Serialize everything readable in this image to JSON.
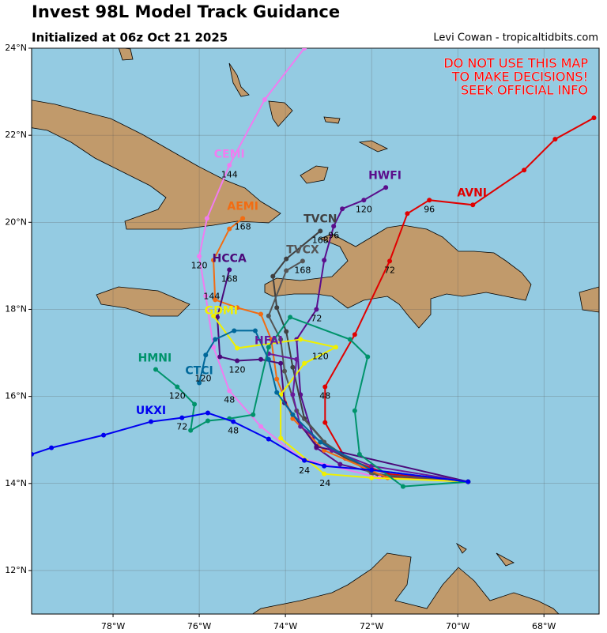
{
  "header": {
    "title": "Invest 98L Model Track Guidance",
    "subtitle": "Initialized at 06z Oct 21 2025",
    "credit": "Levi Cowan - tropicaltidbits.com"
  },
  "warning": [
    "DO NOT USE THIS MAP",
    "TO MAKE DECISIONS!",
    "SEEK OFFICIAL INFO"
  ],
  "map": {
    "xlim": [
      -79.89,
      -66.72
    ],
    "ylim": [
      11.0,
      24.0
    ],
    "xticks": [
      {
        "value": -78,
        "label": "78°W"
      },
      {
        "value": -76,
        "label": "76°W"
      },
      {
        "value": -74,
        "label": "74°W"
      },
      {
        "value": -72,
        "label": "72°W"
      },
      {
        "value": -70,
        "label": "70°W"
      },
      {
        "value": -68,
        "label": "68°W"
      }
    ],
    "yticks": [
      {
        "value": 12,
        "label": "12°N"
      },
      {
        "value": 14,
        "label": "14°N"
      },
      {
        "value": 16,
        "label": "16°N"
      },
      {
        "value": 18,
        "label": "18°N"
      },
      {
        "value": 20,
        "label": "20°N"
      },
      {
        "value": 22,
        "label": "22°N"
      },
      {
        "value": 24,
        "label": "24°N"
      }
    ],
    "grid": true,
    "tracks": [
      {
        "name": "AVNI",
        "color": "#e00000",
        "lon": [
          -69.76,
          -71.63,
          -72.61,
          -73.08,
          -73.08,
          -72.39,
          -71.58,
          -71.17,
          -70.66,
          -69.65,
          -68.46,
          -67.74,
          -66.84
        ],
        "lat": [
          14.04,
          14.22,
          14.58,
          15.4,
          16.22,
          17.42,
          19.11,
          20.2,
          20.51,
          20.4,
          21.2,
          21.91,
          22.4
        ],
        "name_at": [
          -69.67,
          20.67
        ],
        "labels": [
          {
            "text": "48",
            "lon": -73.08,
            "lat": 16.0
          },
          {
            "text": "72",
            "lon": -71.58,
            "lat": 18.89
          },
          {
            "text": "96",
            "lon": -70.66,
            "lat": 20.29
          }
        ]
      },
      {
        "name": "HWFI",
        "color": "#5b0e8c",
        "lon": [
          -69.76,
          -71.45,
          -72.73,
          -73.28,
          -73.65,
          -73.74,
          -73.28,
          -73.1,
          -72.88,
          -72.68,
          -72.18,
          -71.67
        ],
        "lat": [
          14.04,
          14.13,
          14.44,
          14.82,
          16.04,
          17.31,
          18.0,
          19.13,
          19.91,
          20.31,
          20.51,
          20.8
        ],
        "name_at": [
          -71.69,
          21.07
        ],
        "labels": [
          {
            "text": "72",
            "lon": -73.28,
            "lat": 17.78
          },
          {
            "text": "96",
            "lon": -72.88,
            "lat": 19.69
          },
          {
            "text": "120",
            "lon": -72.18,
            "lat": 20.29
          }
        ]
      },
      {
        "name": "TVCN",
        "color": "#404040",
        "lon": [
          -69.76,
          -71.82,
          -72.92,
          -73.56,
          -73.83,
          -73.98,
          -74.2,
          -74.29,
          -73.98,
          -73.19
        ],
        "lat": [
          14.04,
          14.16,
          14.76,
          15.49,
          16.67,
          17.49,
          18.04,
          18.76,
          19.16,
          19.8
        ],
        "name_at": [
          -73.19,
          20.07
        ],
        "labels": [
          {
            "text": "168",
            "lon": -73.19,
            "lat": 19.58
          }
        ]
      },
      {
        "name": "TVCX",
        "color": "#555555",
        "lon": [
          -69.76,
          -72.0,
          -73.1,
          -73.74,
          -74.02,
          -74.11,
          -74.39,
          -73.98,
          -73.6
        ],
        "lat": [
          14.04,
          14.22,
          14.95,
          15.67,
          16.58,
          17.31,
          17.85,
          18.89,
          19.11
        ],
        "name_at": [
          -73.6,
          19.36
        ],
        "labels": [
          {
            "text": "168",
            "lon": -73.6,
            "lat": 18.89
          }
        ]
      },
      {
        "name": "CEMI",
        "color": "#f07cf0",
        "lon": [
          -69.76,
          -71.82,
          -73.65,
          -74.57,
          -75.3,
          -75.67,
          -75.85,
          -76.0,
          -75.82,
          -75.3,
          -74.48,
          -73.56
        ],
        "lat": [
          14.04,
          14.13,
          14.58,
          15.31,
          16.13,
          17.13,
          18.31,
          19.22,
          20.09,
          21.31,
          22.82,
          24.0
        ],
        "name_at": [
          -75.3,
          21.56
        ],
        "labels": [
          {
            "text": "48",
            "lon": -75.3,
            "lat": 15.91
          },
          {
            "text": "120",
            "lon": -76.0,
            "lat": 19.0
          },
          {
            "text": "144",
            "lon": -75.3,
            "lat": 21.09
          }
        ]
      },
      {
        "name": "AEMI",
        "color": "#f26c12",
        "lon": [
          -69.76,
          -71.63,
          -73.1,
          -73.83,
          -74.2,
          -74.33,
          -74.57,
          -75.12,
          -75.63,
          -75.67,
          -75.3,
          -74.99
        ],
        "lat": [
          14.04,
          14.13,
          14.76,
          15.49,
          16.4,
          17.31,
          17.89,
          18.04,
          18.22,
          19.13,
          19.85,
          20.09
        ],
        "name_at": [
          -74.99,
          20.36
        ],
        "labels": [
          {
            "text": "144",
            "lon": -75.71,
            "lat": 18.29
          },
          {
            "text": "168",
            "lon": -74.99,
            "lat": 19.89
          }
        ]
      },
      {
        "name": "HCCA",
        "color": "#4b0a7a",
        "lon": [
          -69.76,
          -73.28,
          -74.02,
          -74.11,
          -74.57,
          -75.12,
          -75.52,
          -75.58,
          -75.3
        ],
        "lat": [
          14.04,
          14.85,
          15.85,
          16.76,
          16.85,
          16.82,
          16.91,
          17.82,
          18.91
        ],
        "name_at": [
          -75.3,
          19.16
        ],
        "labels": [
          {
            "text": "120",
            "lon": -75.12,
            "lat": 16.6
          },
          {
            "text": "168",
            "lon": -75.3,
            "lat": 18.69
          }
        ]
      },
      {
        "name": "GDMI",
        "color": "#f0f000",
        "lon": [
          -69.76,
          -72.0,
          -73.1,
          -74.11,
          -74.11,
          -73.56,
          -72.83,
          -73.65,
          -75.12,
          -75.67
        ],
        "lat": [
          14.04,
          14.13,
          14.22,
          15.04,
          16.04,
          16.76,
          17.13,
          17.31,
          17.11,
          17.85
        ],
        "name_at": [
          -75.49,
          17.96
        ],
        "labels": [
          {
            "text": "24",
            "lon": -73.08,
            "lat": 14.0
          },
          {
            "text": "120",
            "lon": -73.19,
            "lat": 16.91
          }
        ]
      },
      {
        "name": "HFAI",
        "color": "#6a1b9a",
        "lon": [
          -69.76,
          -72.0,
          -72.92,
          -73.65,
          -73.83,
          -73.74,
          -74.39
        ],
        "lat": [
          14.04,
          14.4,
          14.76,
          15.31,
          16.04,
          16.85,
          16.98
        ],
        "name_at": [
          -74.39,
          17.27
        ],
        "labels": []
      },
      {
        "name": "HMNI",
        "color": "#00936b",
        "lon": [
          -69.76,
          -71.27,
          -72.28,
          -72.39,
          -72.09,
          -72.5,
          -73.89,
          -74.39,
          -74.75,
          -75.3,
          -75.8,
          -76.2,
          -76.11,
          -76.51,
          -77.01
        ],
        "lat": [
          14.04,
          13.93,
          14.67,
          15.67,
          16.91,
          17.31,
          17.82,
          17.13,
          15.58,
          15.49,
          15.44,
          15.22,
          15.82,
          16.22,
          16.62
        ],
        "name_at": [
          -77.03,
          16.87
        ],
        "labels": [
          {
            "text": "120",
            "lon": -76.51,
            "lat": 16.0
          }
        ]
      },
      {
        "name": "CTCI",
        "color": "#00689a",
        "lon": [
          -69.76,
          -72.0,
          -73.19,
          -73.83,
          -74.2,
          -74.39,
          -74.7,
          -75.19,
          -75.63,
          -75.85,
          -76.0
        ],
        "lat": [
          14.04,
          14.31,
          14.95,
          15.58,
          16.09,
          16.85,
          17.51,
          17.51,
          17.31,
          16.95,
          16.31
        ],
        "name_at": [
          -76.0,
          16.58
        ],
        "labels": [
          {
            "text": "120",
            "lon": -75.91,
            "lat": 16.4
          }
        ]
      },
      {
        "name": "UKXI",
        "color": "#0000f0",
        "lon": [
          -69.76,
          -72.0,
          -73.1,
          -73.56,
          -74.39,
          -75.21,
          -75.8,
          -76.4,
          -77.12,
          -78.22,
          -79.43,
          -79.89
        ],
        "lat": [
          14.04,
          14.31,
          14.4,
          14.53,
          15.02,
          15.42,
          15.62,
          15.51,
          15.42,
          15.11,
          14.82,
          14.67
        ],
        "name_at": [
          -77.12,
          15.67
        ],
        "labels": [
          {
            "text": "24",
            "lon": -73.56,
            "lat": 14.29
          },
          {
            "text": "48",
            "lon": -75.21,
            "lat": 15.2
          },
          {
            "text": "72",
            "lon": -76.4,
            "lat": 15.29
          }
        ]
      }
    ]
  }
}
